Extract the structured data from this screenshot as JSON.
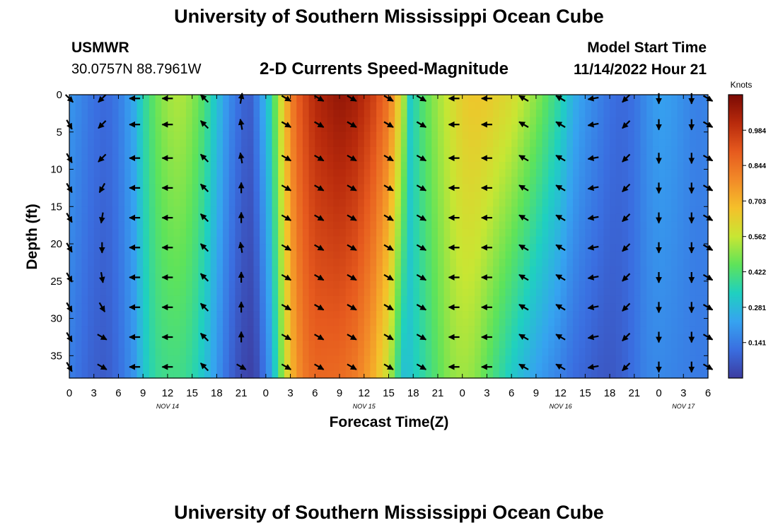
{
  "page": {
    "title": "University of Southern Mississippi Ocean Cube",
    "station": "USMWR",
    "location": "30.0757N  88.7961W",
    "subtitle": "2-D Currents Speed-Magnitude",
    "model_label": "Model Start Time",
    "model_time": "11/14/2022 Hour 21",
    "footer_title": "University of Southern Mississippi Ocean Cube"
  },
  "colors": {
    "colormap": [
      "#3c3ca0",
      "#3a6ee0",
      "#36a3f0",
      "#1fd0c0",
      "#5ee35a",
      "#c8e633",
      "#f5c02a",
      "#f28a28",
      "#e65a1e",
      "#b82a0c",
      "#7a0a04"
    ],
    "arrow": "#000000",
    "background": "#ffffff"
  },
  "chart_data": {
    "type": "heatmap",
    "title": "2-D Currents Speed-Magnitude",
    "xlabel": "Forecast Time(Z)",
    "ylabel": "Depth (ft)",
    "colorbar_label": "Knots",
    "colorbar_ticks": [
      "0.984",
      "0.844",
      "0.703",
      "0.562",
      "0.422",
      "0.281",
      "0.141"
    ],
    "colorbar_tick_values": [
      0.984,
      0.844,
      0.703,
      0.562,
      0.422,
      0.281,
      0.141
    ],
    "color_range": [
      0,
      1.125
    ],
    "xlim": [
      0,
      78
    ],
    "ylim": [
      38,
      0
    ],
    "x_ticks": [
      0,
      3,
      6,
      9,
      12,
      15,
      18,
      21,
      24,
      27,
      30,
      33,
      36,
      39,
      42,
      45,
      48,
      51,
      54,
      57,
      60,
      63,
      66,
      69,
      72,
      75,
      78
    ],
    "x_tick_labels": [
      "0",
      "3",
      "6",
      "9",
      "12",
      "15",
      "18",
      "21",
      "0",
      "3",
      "6",
      "9",
      "12",
      "15",
      "18",
      "21",
      "0",
      "3",
      "6",
      "9",
      "12",
      "15",
      "18",
      "21",
      "0",
      "3",
      "6"
    ],
    "y_ticks": [
      0,
      5,
      10,
      15,
      20,
      25,
      30,
      35
    ],
    "y_tick_labels": [
      "0",
      "5",
      "10",
      "15",
      "20",
      "25",
      "30",
      "35"
    ],
    "date_labels": [
      {
        "text": "NOV 14",
        "x": 12
      },
      {
        "text": "NOV 15",
        "x": 36
      },
      {
        "text": "NOV 16",
        "x": 60
      },
      {
        "text": "NOV 17",
        "x": 75
      }
    ],
    "speed_profile": {
      "time": [
        0,
        1.5,
        3,
        4.5,
        6,
        8,
        9,
        10.5,
        12,
        13.5,
        15,
        16.5,
        18,
        19.5,
        21,
        21.7,
        22,
        23,
        24.5,
        26,
        27,
        28,
        29,
        30,
        33,
        35,
        37,
        39,
        40,
        41,
        41.5,
        42,
        43,
        45,
        46.5,
        48,
        49.5,
        51,
        54,
        57,
        60,
        61.5,
        63,
        64.5,
        66,
        67.5,
        69,
        70.5,
        72,
        73.5,
        75,
        76.5,
        78
      ],
      "speed_surface": [
        0.2,
        0.16,
        0.12,
        0.1,
        0.14,
        0.25,
        0.36,
        0.46,
        0.52,
        0.54,
        0.5,
        0.42,
        0.3,
        0.18,
        0.1,
        0.08,
        0.07,
        0.16,
        0.34,
        0.62,
        0.8,
        0.9,
        0.96,
        1.02,
        1.08,
        1.05,
        0.97,
        0.84,
        0.68,
        0.5,
        0.32,
        0.35,
        0.42,
        0.52,
        0.58,
        0.64,
        0.66,
        0.65,
        0.6,
        0.5,
        0.36,
        0.26,
        0.2,
        0.16,
        0.12,
        0.1,
        0.12,
        0.18,
        0.22,
        0.21,
        0.18,
        0.15,
        0.16
      ],
      "speed_bottom": [
        0.15,
        0.11,
        0.08,
        0.07,
        0.11,
        0.2,
        0.3,
        0.38,
        0.4,
        0.4,
        0.37,
        0.3,
        0.2,
        0.1,
        0.03,
        0.02,
        0.01,
        0.04,
        0.2,
        0.5,
        0.68,
        0.78,
        0.84,
        0.87,
        0.86,
        0.82,
        0.72,
        0.56,
        0.4,
        0.28,
        0.3,
        0.33,
        0.36,
        0.44,
        0.5,
        0.52,
        0.5,
        0.44,
        0.32,
        0.22,
        0.15,
        0.11,
        0.09,
        0.07,
        0.06,
        0.08,
        0.12,
        0.16,
        0.17,
        0.16,
        0.15,
        0.14,
        0.14
      ]
    },
    "vector_grid": {
      "times": [
        0,
        4,
        8,
        12,
        16.5,
        21,
        26.5,
        30.5,
        34.5,
        39,
        43,
        47,
        51,
        55.5,
        60,
        64,
        68,
        72,
        76,
        78
      ],
      "depths": [
        0.5,
        4,
        8.5,
        12.5,
        16.5,
        20.5,
        24.5,
        28.5,
        32.5,
        36.5
      ],
      "direction_deg": [
        [
          -45,
          -135,
          -180,
          -180,
          135,
          80,
          -30,
          -30,
          -30,
          -30,
          -30,
          -180,
          180,
          150,
          150,
          -170,
          -135,
          -90,
          -90,
          -30
        ],
        [
          -60,
          -135,
          -180,
          -180,
          135,
          100,
          -30,
          -30,
          -30,
          -30,
          -30,
          -180,
          180,
          150,
          150,
          -170,
          -135,
          -90,
          -90,
          -30
        ],
        [
          -60,
          -135,
          -180,
          -180,
          135,
          100,
          -30,
          -30,
          -30,
          -30,
          -30,
          -180,
          180,
          150,
          150,
          -170,
          -135,
          -90,
          -90,
          -30
        ],
        [
          -60,
          -120,
          -180,
          -180,
          135,
          90,
          -30,
          -30,
          -30,
          -30,
          -30,
          -180,
          180,
          150,
          150,
          -170,
          -135,
          -90,
          -90,
          -30
        ],
        [
          -60,
          -100,
          -180,
          -180,
          135,
          90,
          -30,
          -30,
          -30,
          -30,
          -30,
          -180,
          180,
          150,
          150,
          -170,
          -135,
          -90,
          -90,
          -30
        ],
        [
          -60,
          -90,
          -180,
          -180,
          135,
          100,
          -30,
          -30,
          -30,
          -30,
          -30,
          -180,
          180,
          150,
          150,
          -170,
          -135,
          -90,
          -90,
          -30
        ],
        [
          -60,
          -80,
          -180,
          -180,
          135,
          90,
          -30,
          -30,
          -30,
          -30,
          -30,
          -180,
          180,
          150,
          150,
          -170,
          -135,
          -90,
          -90,
          -30
        ],
        [
          -60,
          -60,
          -180,
          -180,
          135,
          90,
          -30,
          -30,
          -30,
          -30,
          -30,
          -180,
          180,
          150,
          150,
          -170,
          -135,
          -90,
          -90,
          -30
        ],
        [
          -60,
          -30,
          -180,
          -180,
          135,
          90,
          -30,
          -30,
          -30,
          -30,
          -30,
          -180,
          180,
          150,
          150,
          -170,
          -135,
          -90,
          -90,
          -30
        ],
        [
          -60,
          -30,
          -180,
          -180,
          135,
          -30,
          -30,
          -30,
          -30,
          -30,
          -30,
          -180,
          180,
          150,
          150,
          -170,
          -135,
          -90,
          -90,
          -30
        ]
      ]
    }
  }
}
